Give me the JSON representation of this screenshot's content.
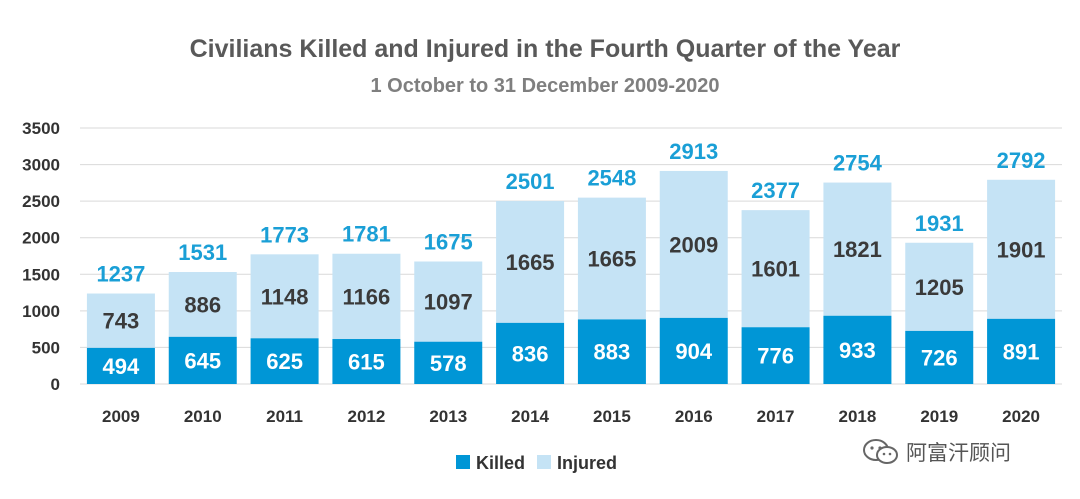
{
  "chart_data": {
    "type": "bar",
    "stacked": true,
    "title": "Civilians Killed and Injured in the Fourth Quarter of the Year",
    "subtitle": "1 October to 31 December 2009-2020",
    "categories": [
      "2009",
      "2010",
      "2011",
      "2012",
      "2013",
      "2014",
      "2015",
      "2016",
      "2017",
      "2018",
      "2019",
      "2020"
    ],
    "series": [
      {
        "name": "Killed",
        "values": [
          494,
          645,
          625,
          615,
          578,
          836,
          883,
          904,
          776,
          933,
          726,
          891
        ]
      },
      {
        "name": "Injured",
        "values": [
          743,
          886,
          1148,
          1166,
          1097,
          1665,
          1665,
          2009,
          1601,
          1821,
          1205,
          1901
        ]
      }
    ],
    "totals": [
      1237,
      1531,
      1773,
      1781,
      1675,
      2501,
      2548,
      2913,
      2377,
      2754,
      1931,
      2792
    ],
    "yticks": [
      "0",
      "500",
      "1000",
      "1500",
      "2000",
      "2500",
      "3000",
      "3500"
    ],
    "ylim": [
      0,
      3500
    ],
    "grid": true,
    "legend_position": "bottom-center",
    "colors": {
      "killed": "#0096d6",
      "injured": "#c5e3f5",
      "total_label": "#1a9fd6"
    }
  },
  "watermark": {
    "text": "阿富汗顾问",
    "icon": "wechat-icon"
  }
}
